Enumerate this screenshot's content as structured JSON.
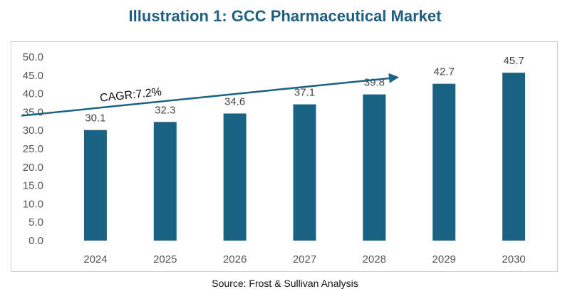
{
  "title": "Illustration 1: GCC Pharmaceutical Market",
  "source": "Source: Frost & Sullivan Analysis",
  "colors": {
    "bar": "#1a6282",
    "title": "#1f5f80"
  },
  "chart_data": {
    "type": "bar",
    "categories": [
      "2024",
      "2025",
      "2026",
      "2027",
      "2028",
      "2029",
      "2030"
    ],
    "values": [
      30.1,
      32.3,
      34.6,
      37.1,
      39.8,
      42.7,
      45.7
    ],
    "value_labels": [
      "30.1",
      "32.3",
      "34.6",
      "37.1",
      "39.8",
      "42.7",
      "45.7"
    ],
    "ylim": [
      0,
      50
    ],
    "yticks": [
      "0.0",
      "5.0",
      "10.0",
      "15.0",
      "20.0",
      "25.0",
      "30.0",
      "35.0",
      "40.0",
      "45.0",
      "50.0"
    ],
    "grid": false,
    "legend": "none",
    "annotation": {
      "text": "CAGR:7.2%",
      "arrow_from_value": 34.0,
      "arrow_to_value": 44.5
    }
  }
}
